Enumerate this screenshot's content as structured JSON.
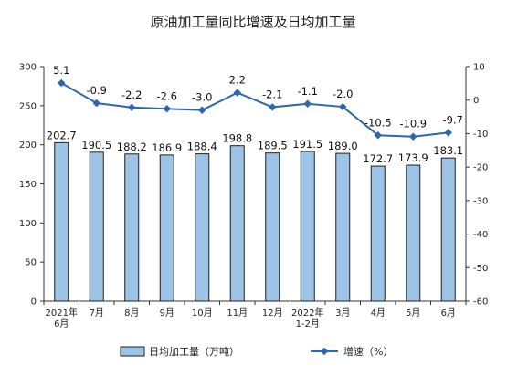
{
  "chart_data": {
    "type": "bar+line",
    "title": "原油加工量同比增速及日均加工量",
    "categories": [
      "2021年\n6月",
      "7月",
      "8月",
      "9月",
      "10月",
      "11月",
      "12月",
      "2022年\n1-2月",
      "3月",
      "4月",
      "5月",
      "6月"
    ],
    "series": [
      {
        "name": "日均加工量（万吨）",
        "type": "bar",
        "axis": "left",
        "values": [
          202.7,
          190.5,
          188.2,
          186.9,
          188.4,
          198.8,
          189.5,
          191.5,
          189.0,
          172.7,
          173.9,
          183.1
        ],
        "labels": [
          "202.7",
          "190.5",
          "188.2",
          "186.9",
          "188.4",
          "198.8",
          "189.5",
          "191.5",
          "189.0",
          "172.7",
          "173.9",
          "183.1"
        ]
      },
      {
        "name": "增速（%）",
        "type": "line",
        "axis": "right",
        "values": [
          5.1,
          -0.9,
          -2.2,
          -2.6,
          -3.0,
          2.2,
          -2.1,
          -1.1,
          -2.0,
          -10.5,
          -10.9,
          -9.7
        ],
        "labels": [
          "5.1",
          "-0.9",
          "-2.2",
          "-2.6",
          "-3.0",
          "2.2",
          "-2.1",
          "-1.1",
          "-2.0",
          "-10.5",
          "-10.9",
          "-9.7"
        ]
      }
    ],
    "left_axis": {
      "min": 0,
      "max": 300,
      "ticks": [
        "0",
        "50",
        "100",
        "150",
        "200",
        "250",
        "300"
      ]
    },
    "right_axis": {
      "min": -60,
      "max": 10,
      "ticks": [
        "-60",
        "-50",
        "-40",
        "-30",
        "-20",
        "-10",
        "0",
        "10"
      ]
    },
    "grid": false,
    "legend_position": "bottom",
    "colors": {
      "bar_fill": "#9dc3e6",
      "bar_stroke": "#1f1f1f",
      "line": "#2e67b1"
    }
  }
}
